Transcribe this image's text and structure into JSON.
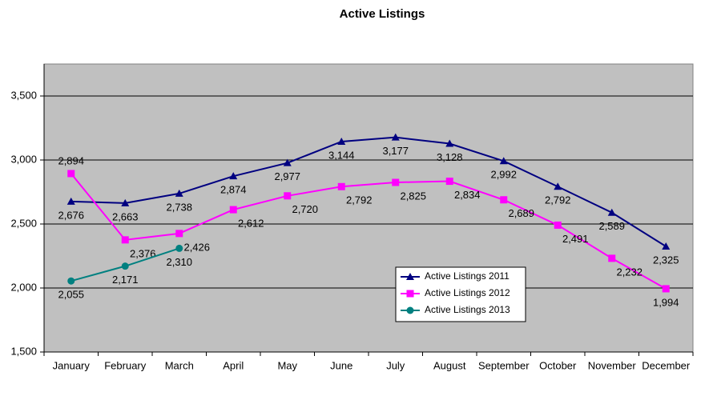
{
  "chart_data": {
    "type": "line",
    "title": "Active Listings",
    "categories": [
      "January",
      "February",
      "March",
      "April",
      "May",
      "June",
      "July",
      "August",
      "September",
      "October",
      "November",
      "December"
    ],
    "series": [
      {
        "name": "Active Listings 2011",
        "color": "#000080",
        "marker": "triangle",
        "values": [
          2676,
          2663,
          2738,
          2874,
          2977,
          3144,
          3177,
          3128,
          2992,
          2792,
          2589,
          2325
        ],
        "value_labels": [
          "2,676",
          "2,663",
          "2,738",
          "2,874",
          "2,977",
          "3,144",
          "3,177",
          "3,128",
          "2,992",
          "2,792",
          "2,589",
          "2,325"
        ]
      },
      {
        "name": "Active Listings 2012",
        "color": "#ff00ff",
        "marker": "square",
        "values": [
          2894,
          2376,
          2426,
          2612,
          2720,
          2792,
          2825,
          2834,
          2689,
          2491,
          2232,
          1994
        ],
        "value_labels": [
          "2,894",
          "2,376",
          "2,426",
          "2,612",
          "2,720",
          "2,792",
          "2,825",
          "2,834",
          "2,689",
          "2,491",
          "2,232",
          "1,994"
        ]
      },
      {
        "name": "Active Listings 2013",
        "color": "#008080",
        "marker": "circle",
        "values": [
          2055,
          2171,
          2310,
          null,
          null,
          null,
          null,
          null,
          null,
          null,
          null,
          null
        ],
        "value_labels": [
          "2,055",
          "2,171",
          "2,310",
          null,
          null,
          null,
          null,
          null,
          null,
          null,
          null,
          null
        ]
      }
    ],
    "ylim": [
      1500,
      3750
    ],
    "yticks": [
      {
        "value": 1500,
        "label": "1,500"
      },
      {
        "value": 2000,
        "label": "2,000"
      },
      {
        "value": 2500,
        "label": "2,500"
      },
      {
        "value": 3000,
        "label": "3,000"
      },
      {
        "value": 3500,
        "label": "3,500"
      }
    ],
    "grid": true,
    "legend": "lower-center"
  }
}
